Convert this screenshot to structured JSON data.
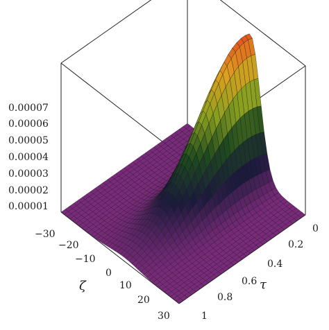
{
  "chart_data": {
    "type": "surface",
    "title": "",
    "z_ticks": [
      "0.00001",
      "0.00002",
      "0.00003",
      "0.00004",
      "0.00005",
      "0.00006",
      "0.00007"
    ],
    "zeta_ticks": [
      "−30",
      "−20",
      "−10",
      "0",
      "10",
      "20",
      "30"
    ],
    "tau_ticks": [
      "0",
      "0.2",
      "0.4",
      "0.6",
      "0.8",
      "1"
    ],
    "zeta_label": "ζ",
    "tau_label": "τ",
    "zeta_range": [
      -30,
      30
    ],
    "tau_range": [
      0,
      1
    ],
    "z_range": [
      0,
      8e-05
    ],
    "peak": {
      "zeta": 2,
      "tau": 0.05,
      "z": 7.5e-05
    },
    "surface_shape": "hump decaying along tau, centered near zeta = 2",
    "colormap": [
      "#7a2a7a",
      "#1a1a3c",
      "#1e4a1e",
      "#8aa020",
      "#e0a020",
      "#e03020"
    ]
  }
}
